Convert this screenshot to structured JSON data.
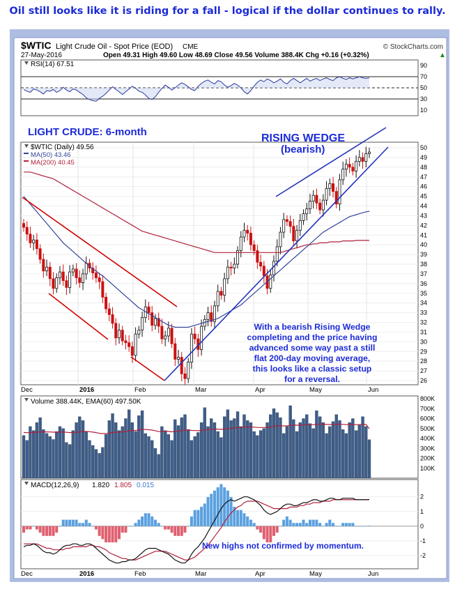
{
  "headline": "Oil still looks like it is riding for a fall - logical if the dollar continues to rally.",
  "header": {
    "symbol": "$WTIC",
    "name": "Light Crude Oil - Spot Price (EOD)",
    "exchange": "CME",
    "copyright": "© StockCharts.com",
    "date": "27-May-2016",
    "quote": "Open 49.31  High 49.60  Low 48.69  Close 49.56  Volume 388.4K  Chg +0.16 (+0.32%)",
    "quote_arrow": "▲"
  },
  "colors": {
    "frame": "#aebde2",
    "panel_bg": "#ffffff",
    "price_line": "#2a3a9a",
    "ma50": "#33449a",
    "ma200": "#b0203a",
    "up": "#111111",
    "down": "#cc1111",
    "volume": "#3e5e8a",
    "annot_blue": "#1c2bd8",
    "annot_red": "#d00000",
    "macd_hist": "#5aa0e0",
    "macd_hist_neg": "#e06070"
  },
  "annotations": {
    "period": "LIGHT CRUDE: 6-month",
    "wedge_title": "RISING WEDGE",
    "wedge_sub": "(bearish)",
    "commentary": [
      "With a bearish Rising Wedge",
      "completing and the price having",
      "advanced some way past a still",
      "flat 200-day moving average,",
      "this looks like a classic setup",
      "for a reversal."
    ],
    "momentum_note": "New highs not confirmed by momentum."
  },
  "x_labels": [
    "Dec",
    "2016",
    "Feb",
    "Mar",
    "Apr",
    "May",
    "Jun"
  ],
  "chart_data": [
    {
      "type": "line",
      "panel": "rsi",
      "legend": "RSI(14) 67.51",
      "y_ticks": [
        10,
        30,
        50,
        70,
        90
      ],
      "levels": [
        30,
        50,
        70
      ],
      "ylim": [
        0,
        100
      ],
      "series": [
        {
          "name": "RSI(14)",
          "values": [
            47,
            44,
            42,
            48,
            46,
            43,
            39,
            45,
            44,
            47,
            42,
            45,
            51,
            46,
            43,
            48,
            46,
            42,
            38,
            32,
            29,
            27,
            26,
            31,
            35,
            40,
            46,
            52,
            47,
            43,
            38,
            43,
            48,
            53,
            49,
            44,
            42,
            37,
            31,
            29,
            34,
            42,
            49,
            55,
            51,
            46,
            50,
            55,
            59,
            56,
            52,
            47,
            45,
            53,
            58,
            62,
            64,
            60,
            57,
            63,
            61,
            55,
            51,
            54,
            58,
            55,
            50,
            43,
            39,
            45,
            53,
            60,
            64,
            61,
            66,
            63,
            59,
            62,
            66,
            60,
            57,
            63,
            67,
            63,
            59,
            63,
            67,
            62,
            65,
            67,
            63,
            66,
            68,
            65,
            63,
            68,
            70,
            67,
            65,
            68,
            66,
            68,
            70,
            68,
            67,
            68
          ]
        }
      ]
    },
    {
      "type": "candlestick",
      "panel": "price",
      "legend": [
        "$WTIC (Daily) 49.56",
        "MA(50) 43.46",
        "MA(200) 40.45"
      ],
      "ylim": [
        26,
        50
      ],
      "y_ticks": [
        26,
        27,
        28,
        29,
        30,
        31,
        32,
        33,
        34,
        35,
        36,
        37,
        38,
        39,
        40,
        41,
        42,
        43,
        44,
        45,
        46,
        47,
        48,
        49,
        50
      ],
      "close": [
        41.8,
        41.1,
        40.2,
        40.5,
        39.6,
        38.5,
        37.3,
        37.7,
        36.5,
        35.5,
        36.6,
        37.2,
        36.3,
        35.6,
        37.2,
        37.5,
        36.6,
        36.1,
        37.0,
        38.1,
        37.6,
        37.1,
        36.6,
        36.2,
        34.6,
        33.4,
        32.8,
        31.9,
        30.4,
        31.2,
        30.1,
        29.9,
        29.5,
        28.6,
        30.8,
        31.2,
        32.5,
        33.6,
        33.0,
        31.7,
        32.4,
        31.6,
        30.3,
        30.6,
        31.4,
        29.8,
        28.2,
        28.4,
        26.7,
        26.2,
        27.9,
        30.8,
        30.3,
        29.2,
        31.6,
        32.3,
        33.0,
        32.1,
        33.7,
        35.2,
        34.8,
        36.5,
        37.7,
        37.6,
        38.0,
        39.4,
        40.8,
        41.5,
        41.2,
        40.0,
        39.4,
        38.2,
        37.8,
        36.8,
        35.5,
        36.9,
        38.3,
        39.8,
        41.3,
        42.6,
        42.4,
        41.9,
        40.4,
        41.5,
        42.5,
        43.2,
        43.7,
        44.5,
        45.1,
        44.3,
        43.6,
        44.6,
        45.8,
        46.3,
        45.5,
        44.2,
        46.7,
        47.8,
        48.3,
        48.0,
        47.6,
        48.6,
        49.0,
        48.6,
        49.4,
        49.56
      ],
      "ma50": [
        45.0,
        44.6,
        44.2,
        43.8,
        43.4,
        43.0,
        42.6,
        42.2,
        41.8,
        41.4,
        41.0,
        40.6,
        40.2,
        39.9,
        39.6,
        39.3,
        39.0,
        38.7,
        38.4,
        38.1,
        37.8,
        37.5,
        37.3,
        37.0,
        36.8,
        36.5,
        36.2,
        35.9,
        35.6,
        35.3,
        35.0,
        34.7,
        34.4,
        34.1,
        33.8,
        33.5,
        33.3,
        33.1,
        32.9,
        32.7,
        32.5,
        32.3,
        32.1,
        31.9,
        31.7,
        31.6,
        31.5,
        31.5,
        31.5,
        31.5,
        31.5,
        31.6,
        31.7,
        31.8,
        31.9,
        32.0,
        32.1,
        32.2,
        32.3,
        32.4,
        32.6,
        32.8,
        33.0,
        33.2,
        33.4,
        33.6,
        33.8,
        34.1,
        34.4,
        34.7,
        35.0,
        35.3,
        35.6,
        35.9,
        36.2,
        36.5,
        36.8,
        37.1,
        37.4,
        37.7,
        38.0,
        38.3,
        38.6,
        38.9,
        39.2,
        39.5,
        39.8,
        40.1,
        40.4,
        40.7,
        41.0,
        41.3,
        41.5,
        41.7,
        41.9,
        42.1,
        42.3,
        42.5,
        42.7,
        42.9,
        43.0,
        43.1,
        43.2,
        43.3,
        43.4,
        43.46
      ],
      "ma200": [
        47.5,
        47.5,
        47.5,
        47.4,
        47.3,
        47.2,
        47.1,
        47.0,
        46.9,
        46.8,
        46.6,
        46.4,
        46.2,
        46.0,
        45.8,
        45.6,
        45.4,
        45.2,
        45.0,
        44.8,
        44.6,
        44.4,
        44.2,
        44.0,
        43.8,
        43.6,
        43.4,
        43.2,
        43.0,
        42.8,
        42.6,
        42.4,
        42.2,
        42.0,
        41.8,
        41.6,
        41.4,
        41.3,
        41.2,
        41.1,
        41.0,
        40.9,
        40.8,
        40.7,
        40.6,
        40.5,
        40.4,
        40.3,
        40.2,
        40.1,
        40.0,
        39.9,
        39.8,
        39.7,
        39.6,
        39.5,
        39.4,
        39.3,
        39.2,
        39.2,
        39.2,
        39.2,
        39.2,
        39.2,
        39.2,
        39.2,
        39.2,
        39.2,
        39.2,
        39.2,
        39.2,
        39.2,
        39.2,
        39.2,
        39.2,
        39.2,
        39.2,
        39.2,
        39.2,
        39.3,
        39.4,
        39.5,
        39.6,
        39.7,
        39.8,
        39.9,
        40.0,
        40.0,
        40.1,
        40.1,
        40.2,
        40.2,
        40.2,
        40.3,
        40.3,
        40.3,
        40.3,
        40.4,
        40.4,
        40.4,
        40.4,
        40.45,
        40.45,
        40.45,
        40.45,
        40.45
      ]
    },
    {
      "type": "bar",
      "panel": "volume",
      "legend": "Volume 388.44K, EMA(60) 497.50K",
      "ylim": [
        0,
        800
      ],
      "y_ticks": [
        "100K",
        "200K",
        "300K",
        "400K",
        "500K",
        "600K",
        "700K",
        "800K"
      ],
      "y_tick_values": [
        100,
        200,
        300,
        400,
        500,
        600,
        700,
        800
      ],
      "values": [
        430,
        380,
        520,
        480,
        560,
        610,
        490,
        450,
        420,
        390,
        470,
        520,
        500,
        360,
        340,
        480,
        560,
        620,
        580,
        470,
        380,
        330,
        290,
        250,
        310,
        440,
        580,
        650,
        560,
        480,
        520,
        600,
        690,
        560,
        470,
        630,
        680,
        450,
        420,
        380,
        300,
        240,
        520,
        480,
        440,
        380,
        590,
        530,
        610,
        640,
        490,
        380,
        420,
        460,
        560,
        710,
        520,
        600,
        560,
        470,
        410,
        620,
        690,
        580,
        600,
        670,
        520,
        640,
        580,
        560,
        470,
        430,
        480,
        500,
        560,
        640,
        700,
        660,
        610,
        450,
        520,
        730,
        590,
        470,
        560,
        600,
        640,
        550,
        500,
        680,
        620,
        560,
        450,
        520,
        570,
        640,
        580,
        490,
        450,
        560,
        600,
        480,
        540,
        620,
        520,
        388
      ],
      "ema60": [
        460,
        458,
        460,
        461,
        463,
        466,
        467,
        466,
        465,
        463,
        463,
        464,
        465,
        462,
        459,
        460,
        462,
        466,
        470,
        470,
        468,
        464,
        459,
        452,
        449,
        449,
        453,
        460,
        463,
        464,
        466,
        470,
        477,
        480,
        480,
        485,
        491,
        490,
        488,
        484,
        478,
        469,
        471,
        471,
        470,
        467,
        471,
        473,
        478,
        484,
        484,
        481,
        479,
        478,
        481,
        488,
        489,
        493,
        495,
        494,
        491,
        494,
        500,
        502,
        505,
        510,
        510,
        513,
        515,
        516,
        514,
        511,
        510,
        510,
        511,
        515,
        521,
        526,
        528,
        526,
        526,
        532,
        534,
        533,
        534,
        536,
        539,
        539,
        538,
        542,
        544,
        544,
        541,
        540,
        541,
        543,
        544,
        542,
        539,
        540,
        541,
        539,
        539,
        541,
        540,
        497.5
      ]
    },
    {
      "type": "line",
      "panel": "macd",
      "legend": {
        "label": "MACD(12,26,9)",
        "macd": "1.820",
        "signal": "1.805",
        "hist": "0.015"
      },
      "ylim": [
        -2.8,
        2.6
      ],
      "y_ticks": [
        -2,
        -1,
        0,
        1,
        2
      ],
      "macd": [
        -1.4,
        -1.3,
        -1.3,
        -1.2,
        -1.3,
        -1.5,
        -1.7,
        -1.8,
        -1.8,
        -1.9,
        -1.8,
        -1.6,
        -1.4,
        -1.3,
        -1.3,
        -1.2,
        -1.2,
        -1.3,
        -1.3,
        -1.2,
        -1.2,
        -1.3,
        -1.5,
        -1.7,
        -1.9,
        -2.1,
        -2.3,
        -2.4,
        -2.5,
        -2.5,
        -2.4,
        -2.4,
        -2.3,
        -2.3,
        -2.2,
        -2.0,
        -1.8,
        -1.6,
        -1.5,
        -1.5,
        -1.5,
        -1.6,
        -1.7,
        -1.8,
        -1.9,
        -2.1,
        -2.3,
        -2.4,
        -2.5,
        -2.5,
        -2.3,
        -1.9,
        -1.6,
        -1.4,
        -1.1,
        -0.8,
        -0.4,
        0.0,
        0.4,
        0.8,
        1.2,
        1.5,
        1.7,
        1.8,
        1.7,
        1.8,
        1.9,
        2.0,
        2.0,
        1.9,
        1.8,
        1.6,
        1.4,
        1.1,
        0.9,
        0.8,
        0.9,
        1.0,
        1.2,
        1.4,
        1.5,
        1.5,
        1.4,
        1.4,
        1.5,
        1.6,
        1.6,
        1.7,
        1.8,
        1.8,
        1.7,
        1.7,
        1.8,
        1.9,
        1.9,
        1.8,
        1.8,
        1.9,
        1.9,
        1.9,
        1.9,
        1.8,
        1.8,
        1.8,
        1.8,
        1.82
      ],
      "signal": [
        -1.2,
        -1.2,
        -1.2,
        -1.2,
        -1.2,
        -1.3,
        -1.4,
        -1.5,
        -1.5,
        -1.6,
        -1.6,
        -1.6,
        -1.6,
        -1.5,
        -1.5,
        -1.4,
        -1.4,
        -1.4,
        -1.4,
        -1.4,
        -1.3,
        -1.3,
        -1.4,
        -1.4,
        -1.5,
        -1.6,
        -1.8,
        -1.9,
        -2.0,
        -2.1,
        -2.2,
        -2.2,
        -2.3,
        -2.3,
        -2.3,
        -2.2,
        -2.1,
        -2.0,
        -1.9,
        -1.8,
        -1.7,
        -1.7,
        -1.7,
        -1.7,
        -1.8,
        -1.9,
        -2.0,
        -2.1,
        -2.2,
        -2.3,
        -2.3,
        -2.2,
        -2.1,
        -1.9,
        -1.7,
        -1.5,
        -1.3,
        -1.0,
        -0.7,
        -0.4,
        -0.1,
        0.3,
        0.6,
        0.9,
        1.1,
        1.3,
        1.4,
        1.6,
        1.7,
        1.7,
        1.7,
        1.7,
        1.6,
        1.5,
        1.4,
        1.3,
        1.2,
        1.2,
        1.2,
        1.2,
        1.2,
        1.3,
        1.3,
        1.3,
        1.4,
        1.4,
        1.5,
        1.5,
        1.6,
        1.6,
        1.6,
        1.7,
        1.7,
        1.7,
        1.8,
        1.8,
        1.8,
        1.8,
        1.8,
        1.8,
        1.8,
        1.8,
        1.8,
        1.8,
        1.8,
        1.805
      ]
    }
  ]
}
